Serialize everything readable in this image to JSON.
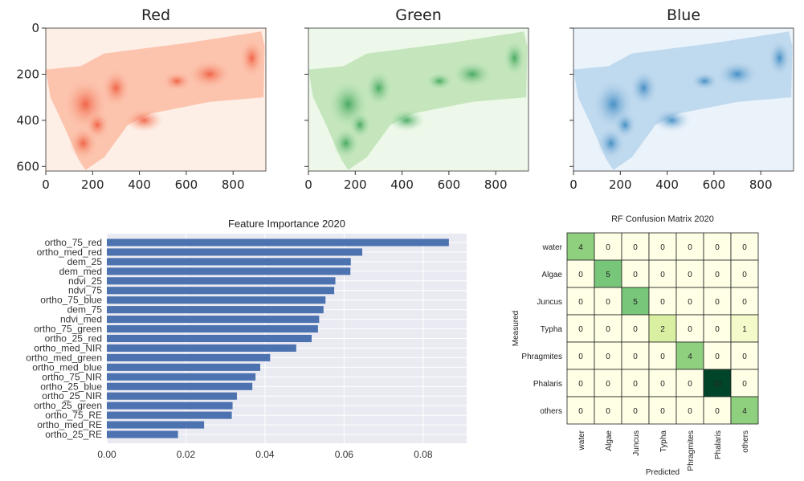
{
  "chart_data": [
    {
      "type": "heatmap",
      "title": "Red",
      "x_ticks": [
        0,
        200,
        400,
        600,
        800
      ],
      "y_ticks": [
        0,
        200,
        400,
        600
      ],
      "xlim": [
        0,
        940
      ],
      "ylim": [
        620,
        0
      ],
      "colormap": "Reds"
    },
    {
      "type": "heatmap",
      "title": "Green",
      "x_ticks": [
        0,
        200,
        400,
        600,
        800
      ],
      "xlim": [
        0,
        940
      ],
      "ylim": [
        620,
        0
      ],
      "colormap": "Greens"
    },
    {
      "type": "heatmap",
      "title": "Blue",
      "x_ticks": [
        0,
        200,
        400,
        600,
        800
      ],
      "xlim": [
        0,
        940
      ],
      "ylim": [
        620,
        0
      ],
      "colormap": "Blues"
    },
    {
      "type": "bar",
      "orientation": "horizontal",
      "title": "Feature Importance 2020",
      "categories": [
        "ortho_75_red",
        "ortho_med_red",
        "dem_25",
        "dem_med",
        "ndvi_25",
        "ndvi_75",
        "ortho_75_blue",
        "dem_75",
        "ndvi_med",
        "ortho_75_green",
        "ortho_25_red",
        "ortho_med_NIR",
        "ortho_med_green",
        "ortho_med_blue",
        "ortho_75_NIR",
        "ortho_25_blue",
        "ortho_25_NIR",
        "ortho_25_green",
        "ortho_75_RE",
        "ortho_med_RE",
        "ortho_25_RE"
      ],
      "values": [
        0.0865,
        0.0646,
        0.0617,
        0.0616,
        0.0578,
        0.0575,
        0.0553,
        0.0548,
        0.0537,
        0.0534,
        0.0518,
        0.0479,
        0.0413,
        0.0388,
        0.0376,
        0.0368,
        0.0329,
        0.0318,
        0.0316,
        0.0246,
        0.018
      ],
      "x_ticks": [
        "0.00",
        "0.02",
        "0.04",
        "0.06",
        "0.08"
      ],
      "xlim": [
        0,
        0.091
      ],
      "bar_color": "#4c72b0",
      "background": "#eaeaf2",
      "grid": true
    },
    {
      "type": "heatmap",
      "title": "RF Confusion Matrix 2020",
      "xlabel": "Predicted",
      "ylabel": "Measured",
      "labels": [
        "water",
        "Algae",
        "Juncus",
        "Typha",
        "Phragmites",
        "Phalaris",
        "others"
      ],
      "matrix": [
        [
          4,
          0,
          0,
          0,
          0,
          0,
          0
        ],
        [
          0,
          5,
          0,
          0,
          0,
          0,
          0
        ],
        [
          0,
          0,
          5,
          0,
          0,
          0,
          0
        ],
        [
          0,
          0,
          0,
          2,
          0,
          0,
          1
        ],
        [
          0,
          0,
          0,
          0,
          4,
          0,
          0
        ],
        [
          0,
          0,
          0,
          0,
          0,
          10,
          0
        ],
        [
          0,
          0,
          0,
          0,
          0,
          0,
          4
        ]
      ],
      "colormap": "YlGn"
    }
  ]
}
